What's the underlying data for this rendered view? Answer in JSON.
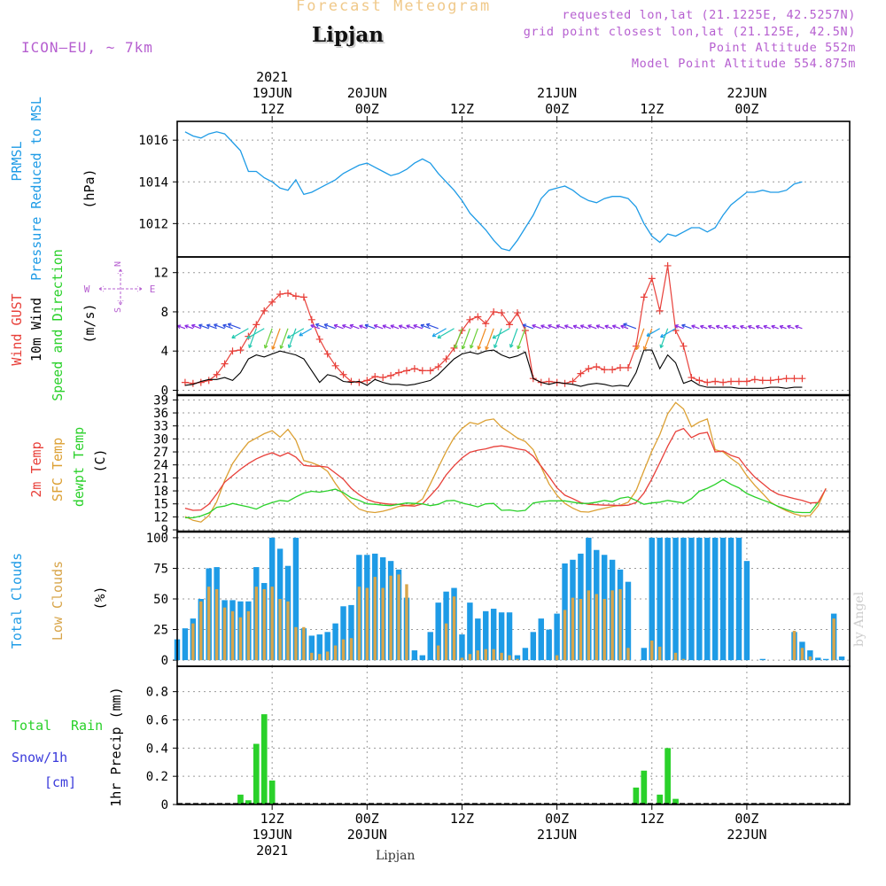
{
  "header": {
    "title": "Forecast Meteogram",
    "location": "Lipjan",
    "model": "ICON–EU, ~ 7km",
    "requested": "requested lon,lat (21.1225E, 42.5257N)",
    "grid_point": "grid point closest lon,lat (21.125E, 42.5N)",
    "point_alt": "Point Altitude 552m",
    "model_alt": "Model Point Altitude 554.875m",
    "footer_location": "Lipjan",
    "watermark": "by Angel"
  },
  "colors": {
    "pressure": "#1e9be6",
    "gust": "#e8403a",
    "wind": "#000000",
    "wind_arrow": "#2ad12a",
    "temp2m": "#e8403a",
    "sfc_temp": "#dca033",
    "dewpt": "#2ad12a",
    "total_cloud": "#1e9be6",
    "low_cloud": "#d8a54a",
    "rain": "#2ad12a",
    "snow": "#3b3bdb",
    "label_purple": "#b65fd0"
  },
  "top_axis": [
    {
      "label": "12Z",
      "extra": [
        "2021",
        "19JUN"
      ],
      "hour": 12
    },
    {
      "label": "00Z",
      "extra": [
        "20JUN"
      ],
      "hour": 24
    },
    {
      "label": "12Z",
      "extra": [],
      "hour": 36
    },
    {
      "label": "00Z",
      "extra": [
        "21JUN"
      ],
      "hour": 48
    },
    {
      "label": "12Z",
      "extra": [],
      "hour": 60
    },
    {
      "label": "00Z",
      "extra": [
        "22JUN"
      ],
      "hour": 72
    }
  ],
  "bottom_axis": [
    {
      "label": "12Z",
      "extra": [
        "19JUN",
        "2021"
      ],
      "hour": 12
    },
    {
      "label": "00Z",
      "extra": [
        "20JUN"
      ],
      "hour": 24
    },
    {
      "label": "12Z",
      "extra": [],
      "hour": 36
    },
    {
      "label": "00Z",
      "extra": [
        "21JUN"
      ],
      "hour": 48
    },
    {
      "label": "12Z",
      "extra": [],
      "hour": 60
    },
    {
      "label": "00Z",
      "extra": [
        "22JUN"
      ],
      "hour": 72
    }
  ],
  "panels": {
    "pressure": {
      "labels": [
        "PRMSL",
        "Pressure Reduced to MSL"
      ],
      "unit": "(hPa)"
    },
    "wind": {
      "labels": [
        "Wind GUST",
        "10m Wind",
        "Speed and Direction"
      ],
      "unit": "(m/s)",
      "compass": {
        "n": "N",
        "s": "S",
        "w": "W",
        "e": "E"
      }
    },
    "temp": {
      "labels": [
        "2m Temp",
        "SFC Temp",
        "dewpt Temp"
      ],
      "unit": "(C)"
    },
    "cloud": {
      "labels": [
        "Total Clouds",
        "Low Clouds"
      ],
      "unit": "(%)"
    },
    "precip": {
      "labels": [
        "Total",
        "Rain",
        "Snow/1h",
        "[cm]"
      ],
      "unit": "1hr Precip (mm)"
    }
  },
  "chart_data": [
    {
      "type": "line",
      "name": "PRMSL",
      "ylim": [
        1010.4,
        1016.9
      ],
      "yticks": [
        "1012",
        "1014",
        "1016"
      ],
      "hours_start": 1,
      "values": [
        1016.4,
        1016.2,
        1016.1,
        1016.3,
        1016.4,
        1016.3,
        1015.9,
        1015.5,
        1014.5,
        1014.5,
        1014.2,
        1014.0,
        1013.7,
        1013.6,
        1014.1,
        1013.4,
        1013.5,
        1013.7,
        1013.9,
        1014.1,
        1014.4,
        1014.6,
        1014.8,
        1014.9,
        1014.7,
        1014.5,
        1014.3,
        1014.4,
        1014.6,
        1014.9,
        1015.1,
        1014.9,
        1014.4,
        1014.0,
        1013.6,
        1013.1,
        1012.5,
        1012.1,
        1011.7,
        1011.2,
        1010.8,
        1010.7,
        1011.2,
        1011.8,
        1012.4,
        1013.2,
        1013.6,
        1013.7,
        1013.8,
        1013.6,
        1013.3,
        1013.1,
        1013.0,
        1013.2,
        1013.3,
        1013.3,
        1013.2,
        1012.8,
        1012.0,
        1011.4,
        1011.1,
        1011.5,
        1011.4,
        1011.6,
        1011.8,
        1011.8,
        1011.6,
        1011.8,
        1012.4,
        1012.9,
        1013.2,
        1013.5,
        1013.5,
        1013.6,
        1013.5,
        1013.5,
        1013.6,
        1013.9,
        1014.0
      ]
    },
    {
      "type": "line",
      "name": "Wind",
      "ylim": [
        -0.5,
        13.6
      ],
      "yticks": [
        "0",
        "4",
        "8",
        "12"
      ],
      "hours_start": 1,
      "gust": [
        0.8,
        0.7,
        0.8,
        1.0,
        1.6,
        2.7,
        4.0,
        4.1,
        5.5,
        6.7,
        8.1,
        9.0,
        9.8,
        9.9,
        9.6,
        9.5,
        7.2,
        5.2,
        3.7,
        2.5,
        1.6,
        0.9,
        0.8,
        1.0,
        1.4,
        1.3,
        1.5,
        1.8,
        2.0,
        2.2,
        2.0,
        2.0,
        2.4,
        3.2,
        4.3,
        6.1,
        7.2,
        7.5,
        6.8,
        8.0,
        7.9,
        6.7,
        7.9,
        6.1,
        1.2,
        0.8,
        0.9,
        0.8,
        0.7,
        0.9,
        1.7,
        2.2,
        2.4,
        2.1,
        2.1,
        2.3,
        2.3,
        4.5,
        9.5,
        11.4,
        8.1,
        12.7,
        6.1,
        4.5,
        1.3,
        1.0,
        0.8,
        0.9,
        0.8,
        0.9,
        0.9,
        0.9,
        1.1,
        1.0,
        1.0,
        1.1,
        1.2,
        1.2,
        1.2
      ],
      "wind": [
        0.5,
        0.6,
        0.9,
        1.1,
        1.1,
        1.3,
        1.0,
        1.8,
        3.2,
        3.6,
        3.4,
        3.7,
        4.0,
        3.8,
        3.6,
        3.2,
        2.0,
        0.8,
        1.6,
        1.4,
        0.9,
        0.8,
        0.9,
        0.5,
        1.1,
        0.8,
        0.6,
        0.6,
        0.5,
        0.6,
        0.8,
        1.0,
        1.6,
        2.4,
        3.2,
        3.7,
        3.9,
        3.7,
        4.0,
        4.1,
        3.6,
        3.3,
        3.5,
        3.9,
        1.2,
        0.8,
        0.6,
        0.8,
        0.7,
        0.6,
        0.4,
        0.6,
        0.7,
        0.6,
        0.4,
        0.5,
        0.4,
        1.8,
        4.1,
        4.1,
        2.2,
        3.6,
        2.8,
        0.7,
        1.0,
        0.5,
        0.3,
        0.3,
        0.3,
        0.3,
        0.2,
        0.2,
        0.2,
        0.2,
        0.3,
        0.3,
        0.2,
        0.3,
        0.3
      ]
    },
    {
      "type": "line",
      "name": "Temperature",
      "ylim": [
        8.6,
        40.1
      ],
      "yticks": [
        "9",
        "12",
        "15",
        "18",
        "21",
        "24",
        "27",
        "30",
        "33",
        "36",
        "39"
      ],
      "hours_start": 1,
      "t2m": [
        14.0,
        13.5,
        13.6,
        14.9,
        17.3,
        20.0,
        21.5,
        23.0,
        24.3,
        25.4,
        26.2,
        26.8,
        26.0,
        26.8,
        25.8,
        23.9,
        23.7,
        23.7,
        23.5,
        22.1,
        20.7,
        18.6,
        17.1,
        16.0,
        15.4,
        15.1,
        14.9,
        14.9,
        14.6,
        14.5,
        15.0,
        16.9,
        18.9,
        21.7,
        23.8,
        25.6,
        26.9,
        27.4,
        27.7,
        28.2,
        28.4,
        28.1,
        27.7,
        27.4,
        26.0,
        23.7,
        21.3,
        18.7,
        17.0,
        16.2,
        15.3,
        14.9,
        14.8,
        14.7,
        14.7,
        14.6,
        14.7,
        15.3,
        17.5,
        20.8,
        24.5,
        28.3,
        31.7,
        32.4,
        30.3,
        31.2,
        31.5,
        27.0,
        27.2,
        26.2,
        25.6,
        23.2,
        21.2,
        19.7,
        18.2,
        17.2,
        16.7,
        16.2,
        15.8,
        15.2,
        15.3,
        18.5
      ],
      "sfc": [
        12.1,
        11.2,
        10.8,
        12.3,
        15.5,
        20.4,
        24.3,
        26.9,
        29.2,
        30.2,
        31.2,
        31.9,
        30.4,
        32.2,
        29.7,
        25.0,
        24.5,
        23.8,
        22.5,
        19.7,
        17.2,
        15.3,
        13.8,
        13.2,
        13.0,
        13.3,
        13.8,
        14.4,
        14.6,
        14.9,
        16.1,
        19.6,
        23.4,
        27.1,
        30.3,
        32.4,
        33.8,
        33.4,
        34.3,
        34.6,
        32.7,
        31.5,
        30.2,
        29.4,
        27.5,
        23.5,
        19.6,
        17.0,
        15.1,
        14.0,
        13.2,
        13.1,
        13.6,
        14.0,
        14.4,
        14.7,
        15.4,
        18.0,
        22.7,
        27.2,
        31.0,
        35.8,
        38.4,
        36.9,
        32.8,
        33.9,
        34.6,
        27.5,
        27.0,
        25.5,
        24.2,
        21.5,
        19.3,
        17.4,
        15.4,
        14.3,
        13.4,
        12.7,
        12.2,
        12.3,
        14.5,
        18.6
      ],
      "dew": [
        11.8,
        11.8,
        12.2,
        12.9,
        14.2,
        14.5,
        15.1,
        14.7,
        14.3,
        13.8,
        14.7,
        15.3,
        15.8,
        15.6,
        16.6,
        17.5,
        17.9,
        17.7,
        18.0,
        18.4,
        17.6,
        16.4,
        15.8,
        15.0,
        14.9,
        14.7,
        14.6,
        14.9,
        15.2,
        15.1,
        15.0,
        14.6,
        14.9,
        15.7,
        15.8,
        15.2,
        14.8,
        14.3,
        15.0,
        15.1,
        13.5,
        13.6,
        13.3,
        13.5,
        15.2,
        15.5,
        15.7,
        15.7,
        15.7,
        15.4,
        15.1,
        15.1,
        15.4,
        15.8,
        15.5,
        16.3,
        16.6,
        15.8,
        14.9,
        15.2,
        15.4,
        15.8,
        15.5,
        15.2,
        16.2,
        17.9,
        18.6,
        19.5,
        20.6,
        19.5,
        18.7,
        17.4,
        16.6,
        15.9,
        15.2,
        14.4,
        13.7,
        13.1,
        13.0,
        13.0,
        15.3
      ]
    },
    {
      "type": "bar",
      "name": "Clouds",
      "ylim": [
        -5,
        105
      ],
      "yticks": [
        "0",
        "25",
        "50",
        "75",
        "100"
      ],
      "hours_start": 0,
      "total": [
        17,
        26,
        34,
        50,
        75,
        76,
        49,
        49,
        48,
        48,
        76,
        63,
        100,
        91,
        77,
        100,
        26,
        20,
        21,
        23,
        30,
        44,
        45,
        86,
        86,
        87,
        84,
        81,
        74,
        51,
        8,
        4,
        23,
        47,
        56,
        59,
        21,
        47,
        34,
        40,
        42,
        39,
        39,
        4,
        10,
        23,
        34,
        25,
        38,
        79,
        82,
        87,
        100,
        90,
        86,
        82,
        74,
        64,
        0,
        10,
        100,
        100,
        100,
        100,
        100,
        100,
        100,
        100,
        100,
        100,
        100,
        100,
        81,
        0,
        1,
        0,
        0,
        0,
        23,
        15,
        8,
        2,
        1,
        38,
        3
      ],
      "low": [
        0,
        0,
        30,
        48,
        60,
        58,
        43,
        40,
        35,
        40,
        60,
        58,
        60,
        50,
        48,
        27,
        27,
        6,
        5,
        7,
        12,
        17,
        18,
        60,
        59,
        68,
        59,
        69,
        70,
        62,
        0,
        0,
        0,
        12,
        30,
        52,
        2,
        5,
        8,
        9,
        9,
        6,
        4,
        1,
        0,
        0,
        0,
        0,
        4,
        41,
        51,
        50,
        57,
        54,
        50,
        57,
        58,
        10,
        0,
        0,
        16,
        11,
        0,
        6,
        1,
        0,
        0,
        0,
        0,
        0,
        0,
        0,
        0,
        0,
        0,
        0,
        0,
        0,
        24,
        10,
        3,
        0,
        0,
        34,
        0
      ]
    },
    {
      "type": "bar",
      "name": "Precipitation",
      "ylim": [
        0,
        0.98
      ],
      "yticks": [
        "0",
        "0.2",
        "0.4",
        "0.6",
        "0.8"
      ],
      "rain": [
        [
          8,
          0.07
        ],
        [
          9,
          0.03
        ],
        [
          10,
          0.43
        ],
        [
          11,
          0.64
        ],
        [
          12,
          0.17
        ],
        [
          58,
          0.12
        ],
        [
          59,
          0.24
        ],
        [
          61,
          0.07
        ],
        [
          62,
          0.4
        ],
        [
          63,
          0.04
        ]
      ]
    }
  ]
}
